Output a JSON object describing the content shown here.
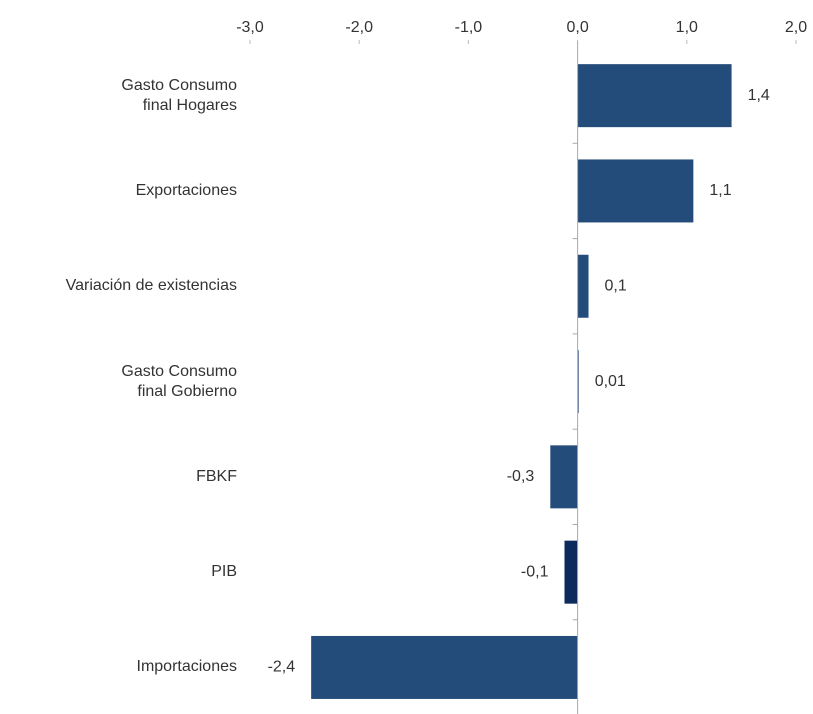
{
  "chart_data": {
    "type": "hbar",
    "categories": [
      "Gasto Consumo\nfinal Hogares",
      "Exportaciones",
      "Variación de existencias",
      "Gasto Consumo\nfinal Gobierno",
      "FBKF",
      "PIB",
      "Importaciones"
    ],
    "values": [
      1.41,
      1.06,
      0.1,
      0.01,
      -0.25,
      -0.12,
      -2.44
    ],
    "value_labels": [
      "1,4",
      "1,1",
      "0,1",
      "0,01",
      "-0,3",
      "-0,1",
      "-2,4"
    ],
    "colors": [
      "#234c7a",
      "#234c7a",
      "#234c7a",
      "#234c7a",
      "#234c7a",
      "#0d2a5c",
      "#234c7a"
    ],
    "xlim": [
      -3,
      2
    ],
    "xticks": [
      {
        "value": -3,
        "label": "-3,0"
      },
      {
        "value": -2,
        "label": "-2,0"
      },
      {
        "value": -1,
        "label": "-1,0"
      },
      {
        "value": 0,
        "label": "0,0"
      },
      {
        "value": 1,
        "label": "1,0"
      },
      {
        "value": 2,
        "label": "2,0"
      }
    ]
  }
}
